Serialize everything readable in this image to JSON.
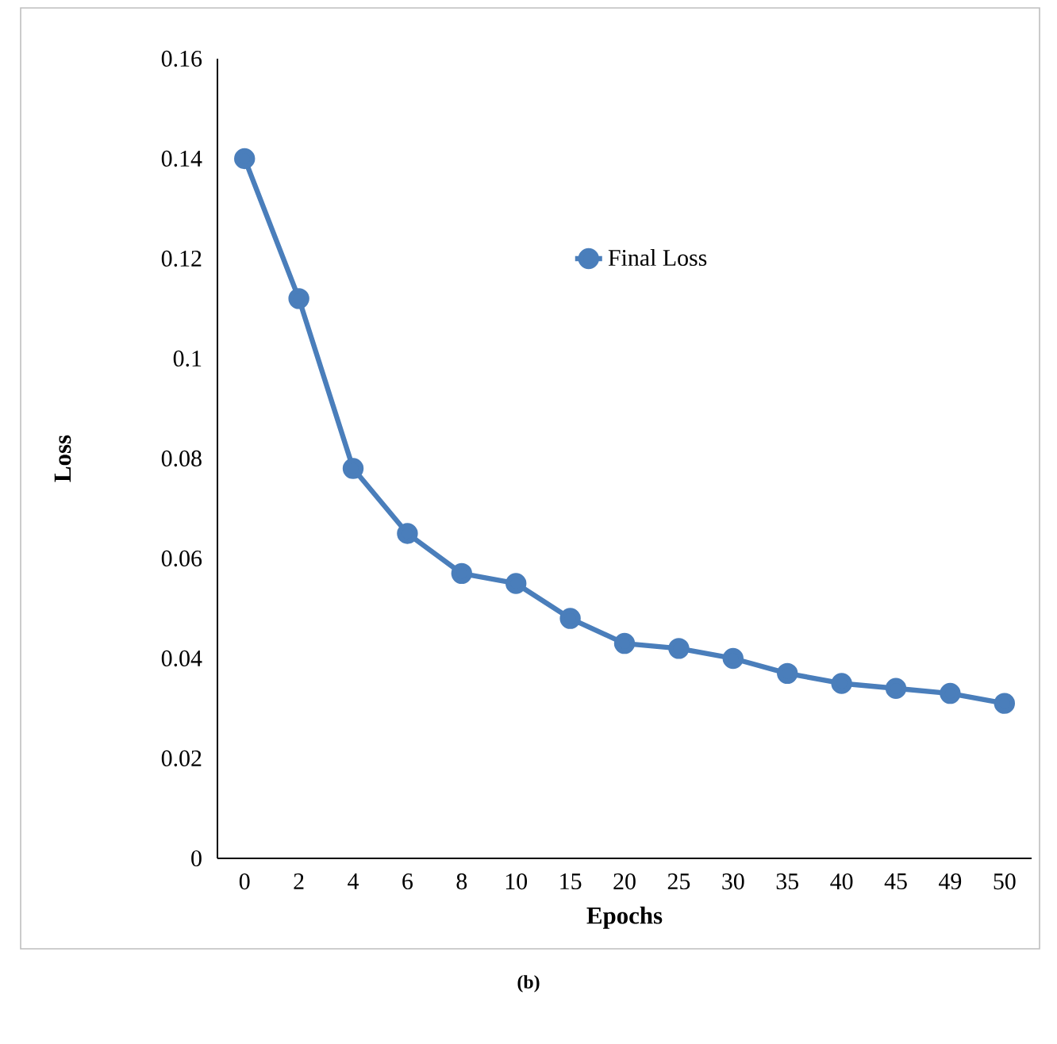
{
  "chart_data": {
    "type": "line",
    "xlabel": "Epochs",
    "ylabel": "Loss",
    "categories": [
      "0",
      "2",
      "4",
      "6",
      "8",
      "10",
      "15",
      "20",
      "25",
      "30",
      "35",
      "40",
      "45",
      "49",
      "50"
    ],
    "series": [
      {
        "name": "Final Loss",
        "color": "#4a7ebb",
        "values": [
          0.14,
          0.112,
          0.078,
          0.065,
          0.057,
          0.055,
          0.048,
          0.043,
          0.042,
          0.04,
          0.037,
          0.035,
          0.034,
          0.033,
          0.031
        ]
      }
    ],
    "ylim": [
      0,
      0.16
    ],
    "yticks": [
      0,
      0.02,
      0.04,
      0.06,
      0.08,
      0.1,
      0.12,
      0.14,
      0.16
    ],
    "grid": false,
    "legend": "top right",
    "marker": "circle",
    "line_style": "solid",
    "annotations": [
      "(b)"
    ]
  }
}
